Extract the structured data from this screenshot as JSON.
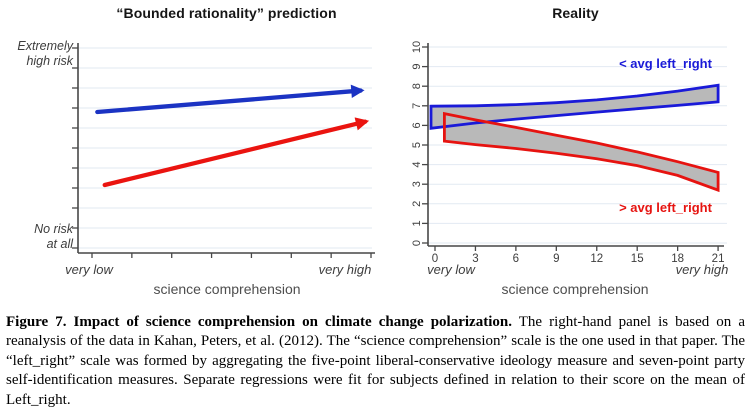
{
  "colors": {
    "blue": "#1b33c3",
    "red": "#ea1410",
    "band_blue": "#1a1ad8",
    "band_red": "#e61310",
    "band_fill": "#b9b9b9",
    "grid": "#e2eaf2",
    "axis": "#474747",
    "tick_text": "#3d3d3d",
    "muted_text": "#4e4e4e"
  },
  "chart_data": [
    {
      "type": "line",
      "panel": "left",
      "title": "“Bounded rationality” prediction",
      "xlabel": "science comprehension",
      "x_end_labels": [
        "very low",
        "very high"
      ],
      "y_top_label": [
        "Extremely",
        "high risk"
      ],
      "y_bottom_label": [
        "No risk",
        "at all"
      ],
      "xlim": [
        0,
        1
      ],
      "ylim": [
        0,
        10
      ],
      "y_tick_values": [
        0,
        1,
        2,
        3,
        4,
        5,
        6,
        7,
        8,
        9,
        10
      ],
      "x_tick_count": 8,
      "grid": true,
      "series": [
        {
          "name": "below-avg left_right prediction arrow",
          "color": "#1b33c3",
          "arrow": true,
          "x": [
            0.065,
            0.975
          ],
          "y": [
            6.8,
            7.9
          ]
        },
        {
          "name": "above-avg left_right prediction arrow",
          "color": "#ea1410",
          "arrow": true,
          "x": [
            0.09,
            0.99
          ],
          "y": [
            3.15,
            6.4
          ]
        }
      ]
    },
    {
      "type": "area",
      "panel": "right",
      "title": "Reality",
      "xlabel": "science comprehension",
      "x_end_labels": [
        "very low",
        "very high"
      ],
      "xlim": [
        -0.9,
        21.7
      ],
      "ylim": [
        0,
        10
      ],
      "x_ticks": [
        0,
        3,
        6,
        9,
        12,
        15,
        18,
        21
      ],
      "y_ticks": [
        0,
        1,
        2,
        3,
        4,
        5,
        6,
        7,
        8,
        9,
        10
      ],
      "grid": true,
      "band_fill": "#b9b9b9",
      "series": [
        {
          "name": "< avg left_right",
          "label": "< avg left_right",
          "color": "#1a1ad8",
          "label_pos": [
            17.1,
            9.15
          ],
          "x": [
            -0.3,
            3,
            6,
            9,
            12,
            15,
            18,
            21
          ],
          "upper": [
            6.98,
            7.0,
            7.06,
            7.16,
            7.3,
            7.5,
            7.75,
            8.05
          ],
          "lower": [
            5.85,
            6.12,
            6.32,
            6.5,
            6.68,
            6.85,
            7.02,
            7.2
          ]
        },
        {
          "name": "> avg left_right",
          "label": "> avg left_right",
          "color": "#e61310",
          "label_pos": [
            17.1,
            1.8
          ],
          "x": [
            0.7,
            3,
            6,
            9,
            12,
            15,
            18,
            21
          ],
          "upper": [
            6.6,
            6.28,
            5.9,
            5.5,
            5.1,
            4.65,
            4.15,
            3.6
          ],
          "lower": [
            5.2,
            5.02,
            4.82,
            4.58,
            4.3,
            3.95,
            3.45,
            2.7
          ]
        }
      ]
    }
  ],
  "caption": {
    "lead": "Figure 7. Impact of science comprehension on climate change polarization.",
    "body": " The right-hand panel is based on a reanalysis of the data in Kahan, Peters, et al. (2012). The “science comprehension” scale is the one used in that paper. The “left_right” scale was formed by aggregating the five-point liberal-conservative ideology measure and seven-point party self-identification measures. Separate regressions were fit for subjects defined in relation to their score on the mean of Left_right."
  }
}
